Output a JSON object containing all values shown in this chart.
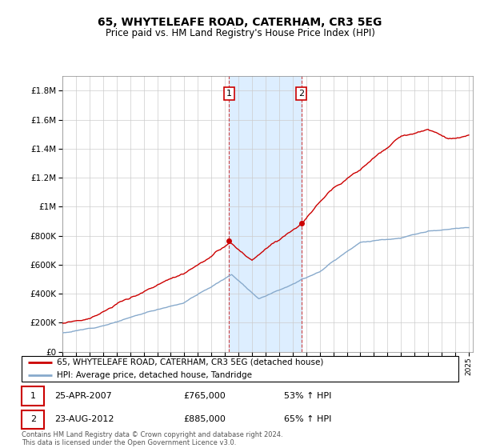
{
  "title": "65, WHYTELEAFE ROAD, CATERHAM, CR3 5EG",
  "subtitle": "Price paid vs. HM Land Registry's House Price Index (HPI)",
  "legend_line1": "65, WHYTELEAFE ROAD, CATERHAM, CR3 5EG (detached house)",
  "legend_line2": "HPI: Average price, detached house, Tandridge",
  "annotation1_date": "25-APR-2007",
  "annotation1_price": "£765,000",
  "annotation1_hpi": "53% ↑ HPI",
  "annotation2_date": "23-AUG-2012",
  "annotation2_price": "£885,000",
  "annotation2_hpi": "65% ↑ HPI",
  "footer": "Contains HM Land Registry data © Crown copyright and database right 2024.\nThis data is licensed under the Open Government Licence v3.0.",
  "red_color": "#cc0000",
  "blue_color": "#88aacc",
  "shaded_color": "#ddeeff",
  "annotation_box_color": "#cc0000",
  "ylim": [
    0,
    1900000
  ],
  "yticks": [
    0,
    200000,
    400000,
    600000,
    800000,
    1000000,
    1200000,
    1400000,
    1600000,
    1800000
  ],
  "sale1_year": 2007.31,
  "sale1_price": 765000,
  "sale2_year": 2012.64,
  "sale2_price": 885000
}
